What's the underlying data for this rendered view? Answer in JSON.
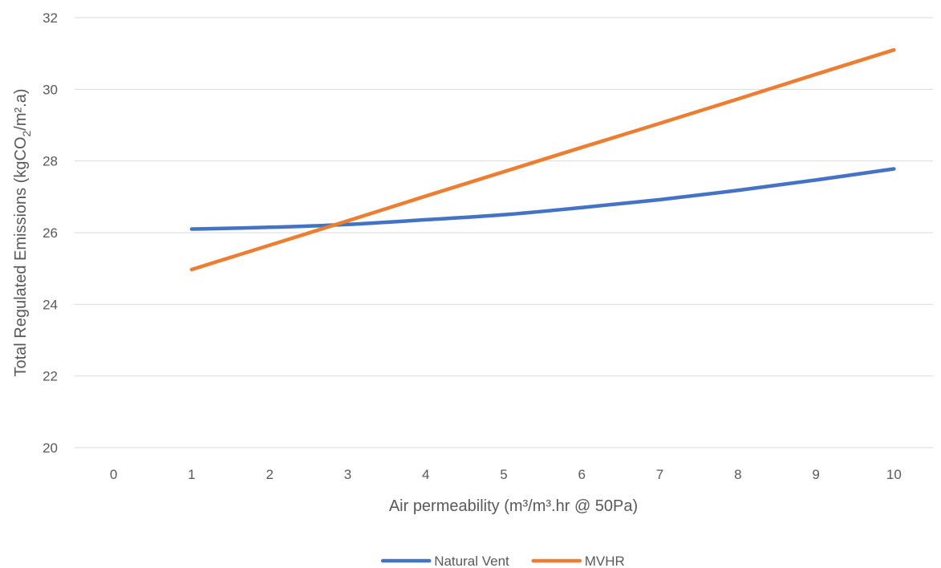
{
  "chart_data": {
    "type": "line",
    "title": "",
    "xlabel": "Air permeability (m³/m³.hr @ 50Pa)",
    "ylabel_parts": {
      "before_sub": "Total Regulated Emissions (kgCO",
      "sub": "2",
      "after_sub": "/m².a)"
    },
    "x_ticks": [
      "0",
      "1",
      "2",
      "3",
      "4",
      "5",
      "6",
      "7",
      "8",
      "9",
      "10"
    ],
    "xlim": [
      0,
      10
    ],
    "y_ticks": [
      "20",
      "22",
      "24",
      "26",
      "28",
      "30",
      "32"
    ],
    "ylim": [
      20,
      32
    ],
    "grid": true,
    "legend_position": "bottom",
    "x": [
      1,
      2,
      3,
      4,
      5,
      6,
      7,
      8,
      9,
      10
    ],
    "series": [
      {
        "name": "Natural Vent",
        "color": "#4472c4",
        "values": [
          26.1,
          26.15,
          26.23,
          26.36,
          26.5,
          26.7,
          26.92,
          27.18,
          27.47,
          27.78
        ]
      },
      {
        "name": "MVHR",
        "color": "#ed7d31",
        "values": [
          24.97,
          25.65,
          26.33,
          27.02,
          27.7,
          28.38,
          29.05,
          29.73,
          30.42,
          31.1
        ]
      }
    ]
  }
}
